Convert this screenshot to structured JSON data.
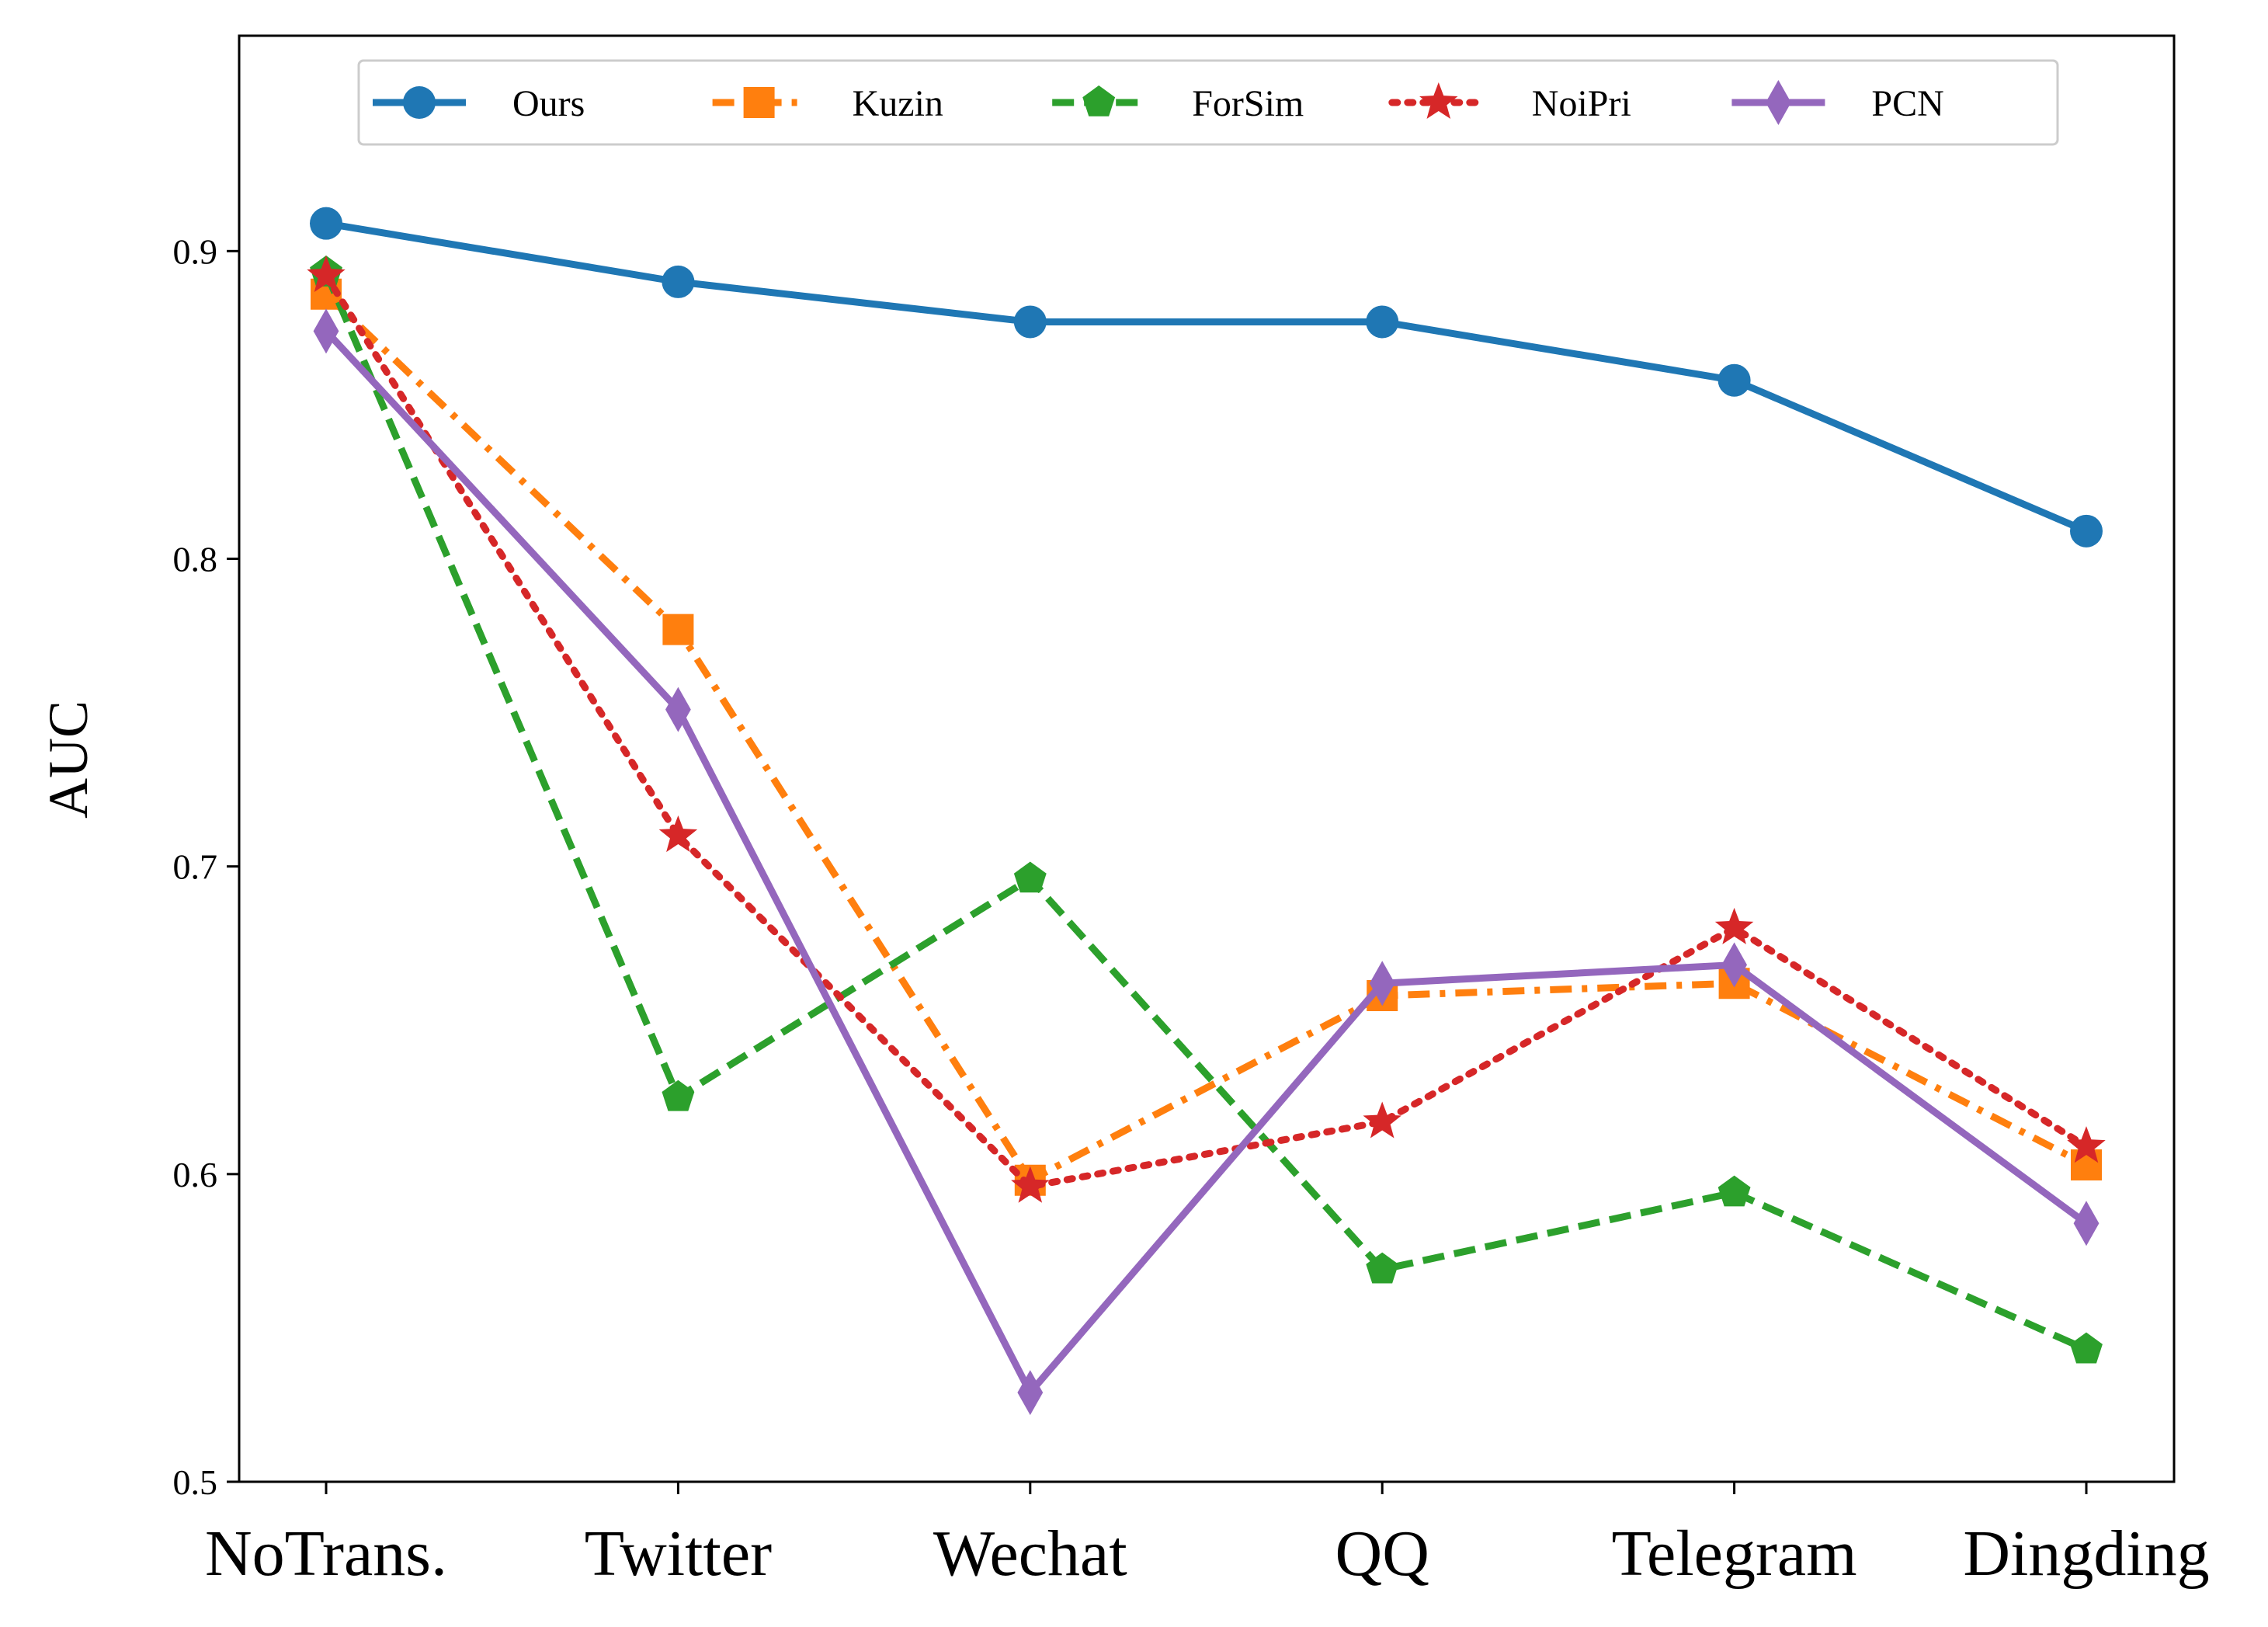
{
  "chart_data": {
    "type": "line",
    "title": "",
    "xlabel": "",
    "ylabel": "AUC",
    "categories": [
      "NoTrans.",
      "Twitter",
      "Wechat",
      "QQ",
      "Telegram",
      "Dingding"
    ],
    "ylim": [
      0.5,
      0.97
    ],
    "yticks": [
      0.5,
      0.6,
      0.7,
      0.8,
      0.9
    ],
    "ytick_labels": [
      "0.5",
      "0.6",
      "0.7",
      "0.8",
      "0.9"
    ],
    "grid": false,
    "legend_position": "top-center",
    "series": [
      {
        "name": "Ours",
        "values": [
          0.909,
          0.89,
          0.877,
          0.877,
          0.858,
          0.809
        ],
        "color": "#1f77b4",
        "line_style": "solid",
        "marker": "circle"
      },
      {
        "name": "Kuzin",
        "values": [
          0.886,
          0.777,
          0.598,
          0.658,
          0.662,
          0.603
        ],
        "color": "#ff7f0e",
        "line_style": "dashdot",
        "marker": "square"
      },
      {
        "name": "ForSim",
        "values": [
          0.893,
          0.625,
          0.696,
          0.569,
          0.594,
          0.543
        ],
        "color": "#2ca02c",
        "line_style": "dashed",
        "marker": "pentagon"
      },
      {
        "name": "NoiPri",
        "values": [
          0.892,
          0.71,
          0.596,
          0.617,
          0.68,
          0.609
        ],
        "color": "#d62728",
        "line_style": "dotted",
        "marker": "star"
      },
      {
        "name": "PCN",
        "values": [
          0.874,
          0.751,
          0.529,
          0.662,
          0.668,
          0.584
        ],
        "color": "#9467bd",
        "line_style": "solid",
        "marker": "diamond"
      }
    ]
  }
}
